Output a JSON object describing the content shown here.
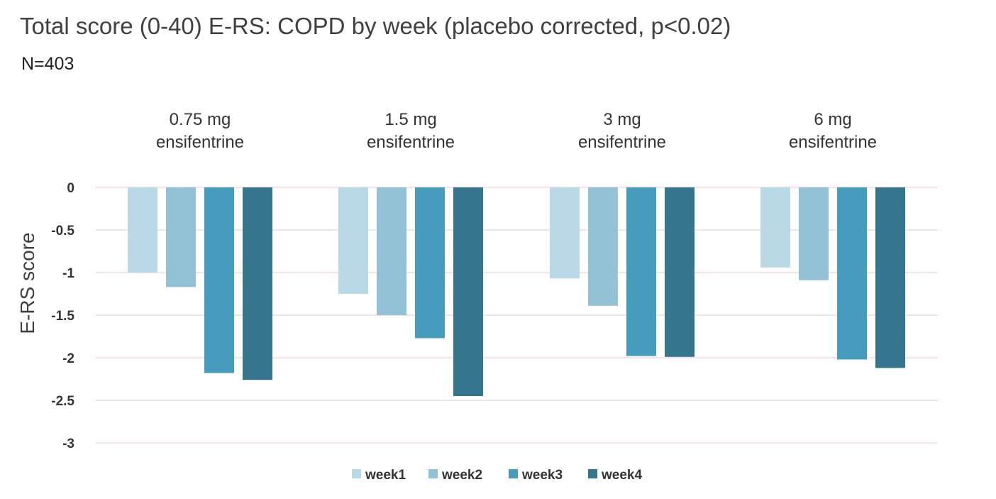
{
  "chart_data": {
    "type": "bar",
    "title": "Total score (0-40) E-RS: COPD by week (placebo corrected, p<0.02)",
    "subtitle": "N=403",
    "ylabel": "E-RS score",
    "xlabel": "",
    "ylim": [
      -3,
      0
    ],
    "yticks": [
      0,
      -0.5,
      -1,
      -1.5,
      -2,
      -2.5,
      -3
    ],
    "ytick_labels": [
      "0",
      "-0.5",
      "-1",
      "-1.5",
      "-2",
      "-2.5",
      "-3"
    ],
    "grid": true,
    "legend_position": "bottom",
    "categories": [
      [
        "0.75 mg",
        "ensifentrine"
      ],
      [
        "1.5 mg",
        "ensifentrine"
      ],
      [
        "3 mg",
        "ensifentrine"
      ],
      [
        "6 mg",
        "ensifentrine"
      ]
    ],
    "series": [
      {
        "name": "week1",
        "color": "#b8d9e5",
        "values": [
          -1.0,
          -1.25,
          -1.07,
          -0.94
        ]
      },
      {
        "name": "week2",
        "color": "#93c2d6",
        "values": [
          -1.17,
          -1.5,
          -1.39,
          -1.09
        ]
      },
      {
        "name": "week3",
        "color": "#469cbc",
        "values": [
          -2.18,
          -1.77,
          -1.98,
          -2.02
        ]
      },
      {
        "name": "week4",
        "color": "#35758e",
        "values": [
          -2.26,
          -2.45,
          -1.99,
          -2.12
        ]
      }
    ]
  }
}
